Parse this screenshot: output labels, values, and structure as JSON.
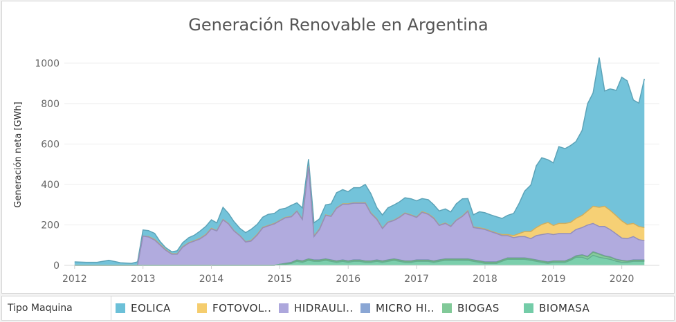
{
  "chart_data": {
    "type": "area",
    "title": "Generación Renovable en Argentina",
    "ylabel": "Generación neta [GWh]",
    "xlabel": "",
    "ylim": [
      0,
      1100
    ],
    "xlim": [
      2011.85,
      2020.55
    ],
    "x_ticks": [
      "2012",
      "2013",
      "2014",
      "2015",
      "2016",
      "2017",
      "2018",
      "2019",
      "2020"
    ],
    "y_ticks": [
      "0",
      "200",
      "400",
      "600",
      "800",
      "1000"
    ],
    "stack_order": [
      "BIOMASA",
      "BIOGAS",
      "MICRO HIDRAULICA",
      "HIDRAULICA",
      "FOTOVOLTAICA",
      "EOLICA"
    ],
    "x": [
      2012.0,
      2012.17,
      2012.33,
      2012.5,
      2012.67,
      2012.83,
      2012.92,
      2013.0,
      2013.08,
      2013.17,
      2013.25,
      2013.33,
      2013.42,
      2013.5,
      2013.58,
      2013.67,
      2013.75,
      2013.83,
      2013.92,
      2014.0,
      2014.08,
      2014.17,
      2014.25,
      2014.33,
      2014.42,
      2014.5,
      2014.58,
      2014.67,
      2014.75,
      2014.83,
      2014.92,
      2015.0,
      2015.08,
      2015.17,
      2015.25,
      2015.33,
      2015.42,
      2015.5,
      2015.58,
      2015.67,
      2015.75,
      2015.83,
      2015.92,
      2016.0,
      2016.08,
      2016.17,
      2016.25,
      2016.33,
      2016.42,
      2016.5,
      2016.58,
      2016.67,
      2016.75,
      2016.83,
      2016.92,
      2017.0,
      2017.08,
      2017.17,
      2017.25,
      2017.33,
      2017.42,
      2017.5,
      2017.58,
      2017.67,
      2017.75,
      2017.83,
      2017.92,
      2018.0,
      2018.08,
      2018.17,
      2018.25,
      2018.33,
      2018.42,
      2018.5,
      2018.58,
      2018.67,
      2018.75,
      2018.83,
      2018.92,
      2019.0,
      2019.08,
      2019.17,
      2019.25,
      2019.33,
      2019.42,
      2019.5,
      2019.58,
      2019.67,
      2019.75,
      2019.83,
      2019.92,
      2020.0,
      2020.08,
      2020.17,
      2020.25,
      2020.33
    ],
    "series": [
      {
        "name": "EOLICA",
        "color": "#6cc0d8",
        "values": [
          17,
          15,
          15,
          25,
          13,
          10,
          17,
          30,
          30,
          30,
          15,
          10,
          10,
          15,
          20,
          25,
          27,
          35,
          40,
          42,
          38,
          60,
          50,
          45,
          35,
          45,
          55,
          50,
          50,
          55,
          50,
          55,
          45,
          55,
          40,
          55,
          35,
          65,
          50,
          50,
          60,
          75,
          70,
          60,
          75,
          75,
          90,
          95,
          55,
          65,
          70,
          75,
          75,
          75,
          80,
          80,
          65,
          70,
          65,
          70,
          70,
          70,
          80,
          85,
          60,
          60,
          80,
          80,
          80,
          80,
          80,
          95,
          110,
          150,
          200,
          230,
          305,
          330,
          310,
          310,
          380,
          370,
          380,
          380,
          420,
          530,
          560,
          740,
          570,
          600,
          620,
          710,
          710,
          610,
          610,
          735
        ]
      },
      {
        "name": "FOTOVOLTAICA",
        "color": "#f5cd6e",
        "values": [
          0,
          0,
          0,
          0,
          0,
          0,
          0,
          0,
          2,
          3,
          3,
          3,
          2,
          2,
          2,
          2,
          2,
          3,
          3,
          3,
          2,
          2,
          2,
          2,
          2,
          2,
          3,
          3,
          3,
          2,
          2,
          2,
          2,
          2,
          2,
          2,
          3,
          3,
          3,
          2,
          2,
          2,
          2,
          2,
          2,
          2,
          3,
          3,
          3,
          2,
          2,
          2,
          2,
          2,
          2,
          2,
          3,
          3,
          3,
          2,
          2,
          2,
          2,
          2,
          3,
          3,
          3,
          3,
          3,
          3,
          5,
          5,
          10,
          15,
          25,
          35,
          40,
          50,
          55,
          45,
          50,
          50,
          55,
          55,
          60,
          70,
          85,
          95,
          100,
          95,
          90,
          85,
          70,
          65,
          65,
          65
        ]
      },
      {
        "name": "HIDRAULICA",
        "color": "#ada7dc",
        "values": [
          0,
          0,
          0,
          0,
          0,
          0,
          0,
          145,
          140,
          125,
          100,
          75,
          55,
          55,
          90,
          110,
          120,
          130,
          150,
          180,
          170,
          225,
          205,
          170,
          145,
          115,
          120,
          150,
          185,
          195,
          205,
          215,
          225,
          225,
          240,
          205,
          455,
          115,
          150,
          215,
          215,
          260,
          275,
          280,
          280,
          280,
          285,
          235,
          200,
          160,
          185,
          190,
          210,
          235,
          225,
          210,
          235,
          225,
          210,
          170,
          175,
          160,
          190,
          210,
          235,
          160,
          160,
          160,
          150,
          140,
          120,
          110,
          100,
          105,
          105,
          100,
          120,
          130,
          140,
          130,
          135,
          135,
          125,
          130,
          135,
          155,
          140,
          135,
          145,
          135,
          125,
          110,
          110,
          115,
          100,
          95
        ]
      },
      {
        "name": "MICRO HIDRAULICA",
        "color": "#8aa6d4",
        "values": [
          0,
          0,
          0,
          0,
          0,
          0,
          0,
          0,
          0,
          0,
          0,
          0,
          0,
          0,
          0,
          0,
          0,
          0,
          0,
          0,
          0,
          0,
          0,
          0,
          0,
          0,
          0,
          0,
          0,
          0,
          0,
          0,
          2,
          2,
          2,
          2,
          2,
          2,
          2,
          2,
          2,
          2,
          2,
          2,
          2,
          2,
          2,
          2,
          2,
          2,
          2,
          2,
          2,
          2,
          2,
          2,
          2,
          2,
          2,
          2,
          2,
          2,
          2,
          2,
          2,
          2,
          2,
          2,
          2,
          2,
          2,
          2,
          2,
          2,
          2,
          2,
          2,
          2,
          2,
          2,
          2,
          2,
          2,
          2,
          2,
          2,
          2,
          2,
          2,
          2,
          2,
          2,
          2,
          2,
          2,
          2
        ]
      },
      {
        "name": "BIOGAS",
        "color": "#81c998",
        "values": [
          0,
          0,
          0,
          0,
          0,
          0,
          0,
          0,
          0,
          0,
          0,
          0,
          0,
          0,
          0,
          0,
          0,
          0,
          0,
          0,
          0,
          0,
          0,
          0,
          0,
          0,
          0,
          0,
          0,
          0,
          0,
          0,
          3,
          3,
          5,
          5,
          5,
          5,
          5,
          5,
          5,
          5,
          5,
          5,
          5,
          5,
          5,
          5,
          5,
          5,
          5,
          5,
          5,
          5,
          5,
          5,
          5,
          5,
          5,
          5,
          5,
          5,
          5,
          5,
          5,
          5,
          5,
          5,
          5,
          5,
          5,
          5,
          5,
          5,
          5,
          5,
          5,
          5,
          5,
          5,
          5,
          5,
          5,
          5,
          10,
          12,
          15,
          15,
          10,
          10,
          8,
          8,
          5,
          5,
          5,
          5
        ]
      },
      {
        "name": "BIOMASA",
        "color": "#74cca8",
        "values": [
          0,
          0,
          0,
          0,
          0,
          0,
          0,
          0,
          0,
          0,
          0,
          0,
          0,
          0,
          0,
          0,
          0,
          0,
          0,
          0,
          0,
          0,
          0,
          0,
          0,
          0,
          0,
          0,
          0,
          0,
          0,
          5,
          5,
          10,
          20,
          15,
          25,
          20,
          20,
          25,
          20,
          15,
          20,
          15,
          20,
          20,
          15,
          15,
          20,
          15,
          20,
          25,
          20,
          15,
          15,
          20,
          20,
          20,
          15,
          20,
          25,
          25,
          25,
          25,
          25,
          20,
          15,
          10,
          10,
          10,
          20,
          30,
          30,
          30,
          30,
          25,
          20,
          15,
          10,
          15,
          15,
          15,
          25,
          40,
          40,
          30,
          50,
          40,
          35,
          30,
          20,
          15,
          15,
          20,
          20,
          20
        ]
      }
    ]
  },
  "legend": {
    "title": "Tipo Maquina",
    "items": [
      {
        "label": "EOLICA",
        "color": "#6cc0d8"
      },
      {
        "label": "FOTOVOL..",
        "color": "#f5cd6e"
      },
      {
        "label": "HIDRAULI..",
        "color": "#ada7dc"
      },
      {
        "label": "MICRO HI..",
        "color": "#8aa6d4"
      },
      {
        "label": "BIOGAS",
        "color": "#81c998"
      },
      {
        "label": "BIOMASA",
        "color": "#74cca8"
      }
    ]
  }
}
